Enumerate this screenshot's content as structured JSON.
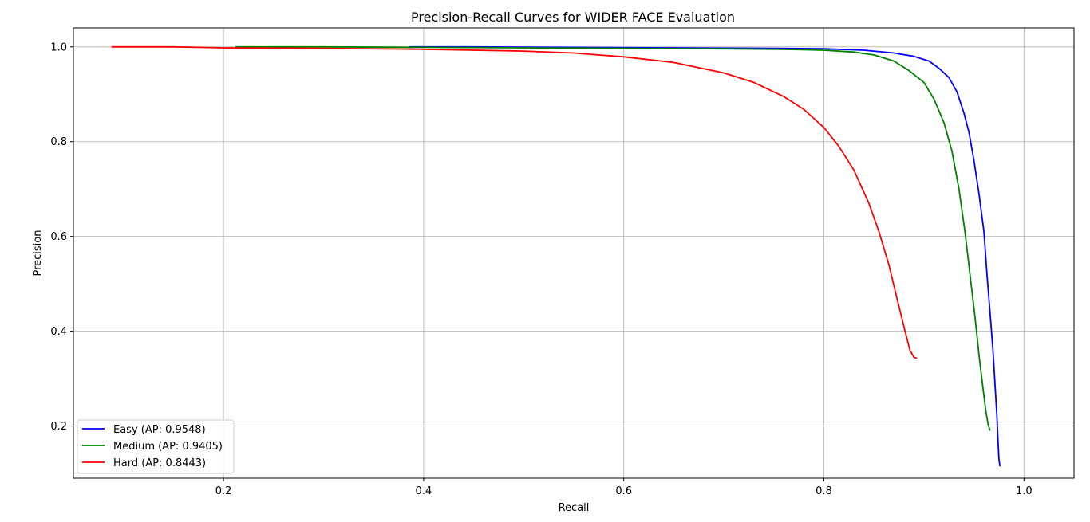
{
  "chart_data": {
    "type": "line",
    "title": "Precision-Recall Curves for WIDER FACE Evaluation",
    "xlabel": "Recall",
    "ylabel": "Precision",
    "xlim": [
      0.05,
      1.05
    ],
    "ylim": [
      0.09,
      1.04
    ],
    "xticks": [
      0.2,
      0.4,
      0.6,
      0.8,
      1.0
    ],
    "xtick_labels": [
      "0.2",
      "0.4",
      "0.6",
      "0.8",
      "1.0"
    ],
    "yticks": [
      0.2,
      0.4,
      0.6,
      0.8,
      1.0
    ],
    "ytick_labels": [
      "0.2",
      "0.4",
      "0.6",
      "0.8",
      "1.0"
    ],
    "grid": true,
    "legend_position": "bottom-left",
    "series": [
      {
        "name": "Easy (AP: 0.9548)",
        "color": "#0000ff",
        "x": [
          0.385,
          0.45,
          0.55,
          0.65,
          0.75,
          0.8,
          0.84,
          0.87,
          0.89,
          0.905,
          0.915,
          0.925,
          0.933,
          0.94,
          0.945,
          0.95,
          0.955,
          0.96,
          0.963,
          0.966,
          0.969,
          0.971,
          0.973,
          0.974,
          0.975,
          0.976
        ],
        "y": [
          1.0,
          1.0,
          0.999,
          0.998,
          0.997,
          0.996,
          0.993,
          0.987,
          0.98,
          0.97,
          0.955,
          0.935,
          0.905,
          0.86,
          0.82,
          0.76,
          0.69,
          0.61,
          0.52,
          0.44,
          0.36,
          0.29,
          0.22,
          0.17,
          0.13,
          0.115
        ]
      },
      {
        "name": "Medium (AP: 0.9405)",
        "color": "#008000",
        "x": [
          0.212,
          0.3,
          0.4,
          0.5,
          0.6,
          0.7,
          0.76,
          0.8,
          0.83,
          0.85,
          0.87,
          0.885,
          0.9,
          0.91,
          0.92,
          0.928,
          0.935,
          0.941,
          0.946,
          0.951,
          0.955,
          0.959,
          0.962,
          0.964,
          0.966
        ],
        "y": [
          1.0,
          1.0,
          0.999,
          0.998,
          0.997,
          0.996,
          0.995,
          0.993,
          0.989,
          0.983,
          0.97,
          0.95,
          0.925,
          0.89,
          0.84,
          0.78,
          0.7,
          0.61,
          0.52,
          0.43,
          0.35,
          0.28,
          0.23,
          0.205,
          0.19
        ]
      },
      {
        "name": "Hard (AP: 0.8443)",
        "color": "#ff0000",
        "x": [
          0.088,
          0.15,
          0.2,
          0.3,
          0.4,
          0.5,
          0.55,
          0.6,
          0.65,
          0.7,
          0.73,
          0.76,
          0.78,
          0.8,
          0.815,
          0.83,
          0.845,
          0.855,
          0.865,
          0.873,
          0.88,
          0.886,
          0.89,
          0.893
        ],
        "y": [
          1.0,
          1.0,
          0.998,
          0.997,
          0.995,
          0.991,
          0.987,
          0.979,
          0.967,
          0.945,
          0.925,
          0.895,
          0.868,
          0.83,
          0.79,
          0.74,
          0.67,
          0.61,
          0.54,
          0.47,
          0.41,
          0.36,
          0.345,
          0.343
        ]
      }
    ]
  }
}
